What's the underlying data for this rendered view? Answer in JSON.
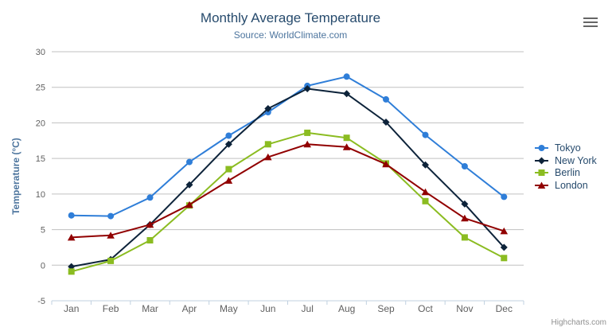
{
  "chart_data": {
    "type": "line",
    "title": "Monthly Average Temperature",
    "subtitle": "Source: WorldClimate.com",
    "xlabel": "",
    "ylabel": "Temperature (°C)",
    "ylim": [
      -5,
      30
    ],
    "yticks": [
      -5,
      0,
      5,
      10,
      15,
      20,
      25,
      30
    ],
    "grid": "horizontal-only",
    "legend_position": "right",
    "categories": [
      "Jan",
      "Feb",
      "Mar",
      "Apr",
      "May",
      "Jun",
      "Jul",
      "Aug",
      "Sep",
      "Oct",
      "Nov",
      "Dec"
    ],
    "series": [
      {
        "name": "Tokyo",
        "color": "#2f7ed8",
        "marker": "circle",
        "values": [
          7.0,
          6.9,
          9.5,
          14.5,
          18.2,
          21.5,
          25.2,
          26.5,
          23.3,
          18.3,
          13.9,
          9.6
        ]
      },
      {
        "name": "New York",
        "color": "#0d233a",
        "marker": "diamond",
        "values": [
          -0.2,
          0.8,
          5.7,
          11.3,
          17.0,
          22.0,
          24.8,
          24.1,
          20.1,
          14.1,
          8.6,
          2.5
        ]
      },
      {
        "name": "Berlin",
        "color": "#8bbc21",
        "marker": "square",
        "values": [
          -0.9,
          0.6,
          3.5,
          8.4,
          13.5,
          17.0,
          18.6,
          17.9,
          14.3,
          9.0,
          3.9,
          1.0
        ]
      },
      {
        "name": "London",
        "color": "#910000",
        "marker": "triangle",
        "values": [
          3.9,
          4.2,
          5.7,
          8.5,
          11.9,
          15.2,
          17.0,
          16.6,
          14.2,
          10.3,
          6.6,
          4.8
        ]
      }
    ],
    "colors": {
      "gridline": "#C0C0C0",
      "axis_line": "#C0D0E0"
    },
    "credit": "Highcharts.com",
    "icons": {
      "export_menu": "hamburger-icon"
    }
  }
}
